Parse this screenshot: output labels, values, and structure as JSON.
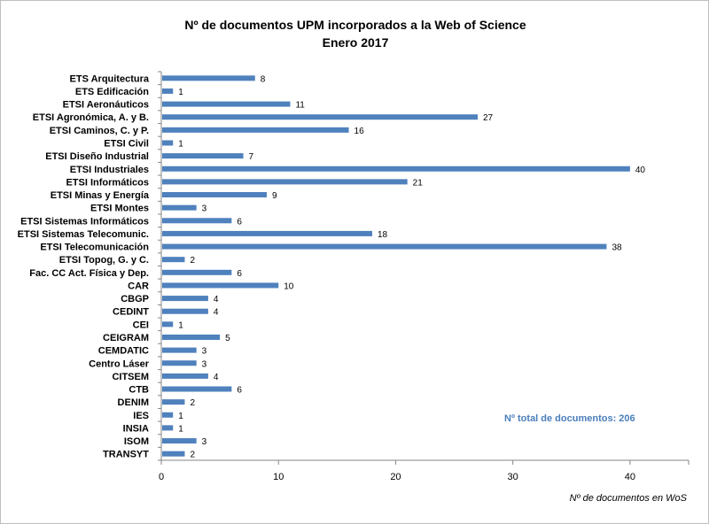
{
  "chart_data": {
    "type": "bar",
    "orientation": "horizontal",
    "title": "Nº de documentos UPM incorporados a la Web of Science",
    "subtitle": "Enero 2017",
    "xlabel": "Nº de documentos en WoS",
    "ylabel": "",
    "xlim": [
      0,
      45
    ],
    "xticks": [
      0,
      10,
      20,
      30,
      40
    ],
    "grid": false,
    "bar_color": "#4F81BD",
    "annotation": "Nº total  de documentos:  206",
    "annotation_color": "#4A7EBB",
    "categories": [
      "ETS Arquitectura",
      "ETS Edificación",
      "ETSI Aeronáuticos",
      "ETSI Agronómica, A. y B.",
      "ETSI Caminos, C. y P.",
      "ETSI Civil",
      "ETSI Diseño Industrial",
      "ETSI Industriales",
      "ETSI Informáticos",
      "ETSI Minas y Energía",
      "ETSI Montes",
      "ETSI Sistemas Informáticos",
      "ETSI Sistemas Telecomunic.",
      "ETSI Telecomunicación",
      "ETSI Topog, G. y C.",
      "Fac. CC Act. Física y Dep.",
      "CAR",
      "CBGP",
      "CEDINT",
      "CEI",
      "CEIGRAM",
      "CEMDATIC",
      "Centro Láser",
      "CITSEM",
      "CTB",
      "DENIM",
      "IES",
      "INSIA",
      "ISOM",
      "TRANSYT"
    ],
    "values": [
      8,
      1,
      11,
      27,
      16,
      1,
      7,
      40,
      21,
      9,
      3,
      6,
      18,
      38,
      2,
      6,
      10,
      4,
      4,
      1,
      5,
      3,
      3,
      4,
      6,
      2,
      1,
      1,
      3,
      2
    ]
  }
}
